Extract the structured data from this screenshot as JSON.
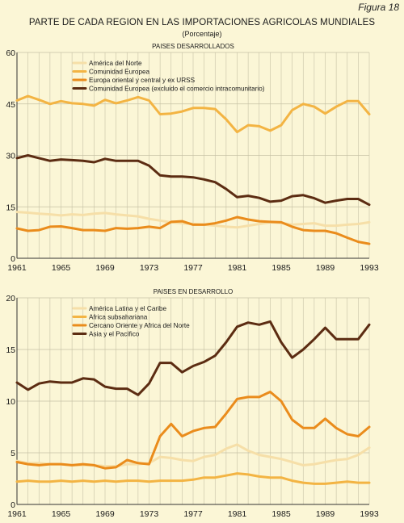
{
  "figure_label": "Figura 18",
  "title": "PARTE DE CADA REGION EN LAS IMPORTACIONES AGRICOLAS MUNDIALES",
  "subtitle": "(Porcentaje)",
  "colors": {
    "background": "#fbf6d6",
    "grid": "#c6c1a5",
    "light": "#f6dfa8",
    "gold": "#f3b443",
    "orange": "#ea8c1c",
    "brown": "#5c2c12"
  },
  "chart_data": [
    {
      "type": "line",
      "title": "PAISES DESARROLLADOS",
      "xlabel": "",
      "ylabel": "",
      "x": [
        1961,
        1962,
        1963,
        1964,
        1965,
        1966,
        1967,
        1968,
        1969,
        1970,
        1971,
        1972,
        1973,
        1974,
        1975,
        1976,
        1977,
        1978,
        1979,
        1980,
        1981,
        1982,
        1983,
        1984,
        1985,
        1986,
        1987,
        1988,
        1989,
        1990,
        1991,
        1992,
        1993
      ],
      "xticks": [
        "1961",
        "1965",
        "1969",
        "1973",
        "1977",
        "1981",
        "1985",
        "1989",
        "1993"
      ],
      "yticks": [
        "0",
        "15",
        "30",
        "45",
        "60"
      ],
      "ylim": [
        0,
        60
      ],
      "legend_position": "top-left",
      "series": [
        {
          "name": "América del Norte",
          "color": "#f6dfa8",
          "values": [
            13.5,
            13.3,
            13.0,
            12.8,
            12.5,
            12.8,
            12.6,
            13.0,
            13.2,
            12.8,
            12.5,
            12.2,
            11.5,
            11.0,
            10.5,
            10.2,
            10.0,
            9.8,
            9.5,
            9.2,
            9.0,
            9.5,
            10.0,
            10.5,
            10.3,
            9.8,
            10.0,
            10.2,
            9.5,
            9.5,
            9.8,
            10.0,
            10.5
          ]
        },
        {
          "name": "Comunidad Europea",
          "color": "#f3b443",
          "values": [
            46.0,
            47.3,
            46.2,
            45.0,
            45.8,
            45.2,
            45.0,
            44.5,
            46.2,
            45.2,
            46.0,
            47.0,
            46.0,
            42.0,
            42.2,
            42.8,
            43.8,
            43.8,
            43.5,
            40.5,
            36.8,
            38.8,
            38.5,
            37.2,
            38.8,
            43.2,
            45.0,
            44.2,
            42.2,
            44.2,
            45.8,
            45.8,
            42.0
          ]
        },
        {
          "name": "Europa oriental y central y ex URSS",
          "color": "#ea8c1c",
          "values": [
            8.7,
            8.0,
            8.2,
            9.2,
            9.3,
            8.8,
            8.2,
            8.2,
            8.0,
            8.8,
            8.6,
            8.8,
            9.2,
            8.8,
            10.6,
            10.8,
            9.8,
            9.8,
            10.2,
            11.0,
            12.0,
            11.3,
            10.8,
            10.6,
            10.5,
            9.2,
            8.2,
            8.0,
            8.0,
            7.3,
            6.0,
            4.8,
            4.2
          ]
        },
        {
          "name": "Comunidad Europea (excluido el comercio intracomunitario)",
          "color": "#5c2c12",
          "values": [
            29.2,
            30.0,
            29.2,
            28.4,
            28.8,
            28.6,
            28.4,
            28.0,
            29.0,
            28.4,
            28.4,
            28.4,
            27.0,
            24.2,
            23.8,
            23.8,
            23.6,
            23.0,
            22.2,
            20.2,
            17.8,
            18.2,
            17.6,
            16.5,
            16.8,
            18.1,
            18.4,
            17.5,
            16.2,
            16.8,
            17.3,
            17.3,
            15.6
          ]
        }
      ]
    },
    {
      "type": "line",
      "title": "PAISES EN DESARROLLO",
      "xlabel": "",
      "ylabel": "",
      "x": [
        1961,
        1962,
        1963,
        1964,
        1965,
        1966,
        1967,
        1968,
        1969,
        1970,
        1971,
        1972,
        1973,
        1974,
        1975,
        1976,
        1977,
        1978,
        1979,
        1980,
        1981,
        1982,
        1983,
        1984,
        1985,
        1986,
        1987,
        1988,
        1989,
        1990,
        1991,
        1992,
        1993
      ],
      "xticks": [
        "1961",
        "1965",
        "1969",
        "1973",
        "1977",
        "1981",
        "1985",
        "1989",
        "1993"
      ],
      "yticks": [
        "0",
        "5",
        "10",
        "15",
        "20"
      ],
      "ylim": [
        0,
        20
      ],
      "legend_position": "top-left",
      "series": [
        {
          "name": "América Latina y el Caribe",
          "color": "#f6dfa8",
          "values": [
            4.2,
            4.0,
            4.0,
            3.9,
            3.9,
            3.8,
            3.8,
            3.8,
            3.7,
            3.7,
            3.9,
            3.9,
            4.0,
            4.6,
            4.5,
            4.3,
            4.2,
            4.6,
            4.8,
            5.4,
            5.8,
            5.2,
            4.8,
            4.6,
            4.4,
            4.1,
            3.8,
            3.9,
            4.1,
            4.3,
            4.4,
            4.8,
            5.5
          ]
        },
        {
          "name": "Africa subsahariana",
          "color": "#f3b443",
          "values": [
            2.2,
            2.3,
            2.2,
            2.2,
            2.3,
            2.2,
            2.3,
            2.2,
            2.3,
            2.2,
            2.3,
            2.3,
            2.2,
            2.3,
            2.3,
            2.3,
            2.4,
            2.6,
            2.6,
            2.8,
            3.0,
            2.9,
            2.7,
            2.6,
            2.6,
            2.3,
            2.1,
            2.0,
            2.0,
            2.1,
            2.2,
            2.1,
            2.1
          ]
        },
        {
          "name": "Cercano Oriente y Africa del Norte",
          "color": "#ea8c1c",
          "values": [
            4.1,
            3.9,
            3.8,
            3.9,
            3.9,
            3.8,
            3.9,
            3.8,
            3.5,
            3.6,
            4.3,
            4.0,
            3.9,
            6.6,
            7.8,
            6.6,
            7.1,
            7.4,
            7.5,
            8.8,
            10.2,
            10.4,
            10.4,
            10.9,
            10.0,
            8.2,
            7.4,
            7.4,
            8.3,
            7.4,
            6.8,
            6.6,
            7.5
          ]
        },
        {
          "name": "Asia y el Pacífico",
          "color": "#5c2c12",
          "values": [
            11.8,
            11.1,
            11.7,
            11.9,
            11.8,
            11.8,
            12.2,
            12.1,
            11.4,
            11.2,
            11.2,
            10.6,
            11.7,
            13.7,
            13.7,
            12.8,
            13.4,
            13.8,
            14.4,
            15.7,
            17.2,
            17.6,
            17.4,
            17.7,
            15.7,
            14.2,
            15.0,
            16.0,
            17.1,
            16.0,
            16.0,
            16.0,
            17.4
          ]
        }
      ]
    }
  ]
}
